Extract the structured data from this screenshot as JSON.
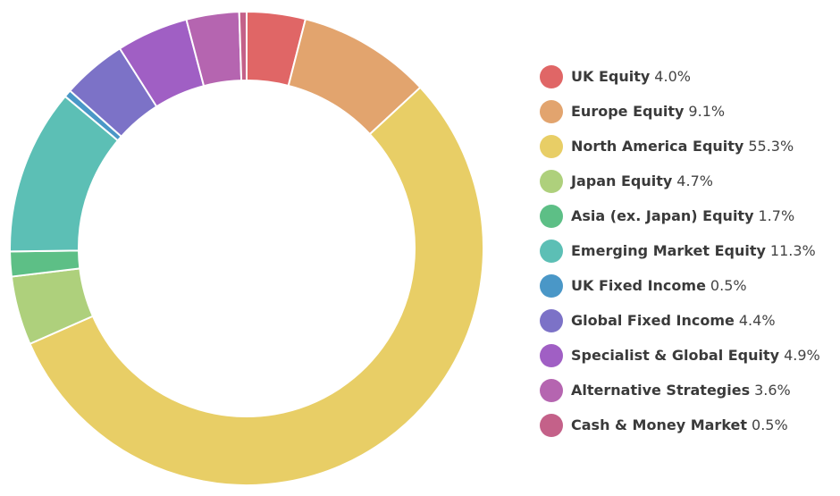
{
  "chart_data": {
    "type": "pie",
    "variant": "donut",
    "title": "",
    "legend_position": "right",
    "categories": [
      "UK Equity",
      "Europe Equity",
      "North America Equity",
      "Japan Equity",
      "Asia (ex. Japan) Equity",
      "Emerging Market Equity",
      "UK Fixed Income",
      "Global Fixed Income",
      "Specialist & Global Equity",
      "Alternative Strategies",
      "Cash & Money Market"
    ],
    "values": [
      4.0,
      9.1,
      55.3,
      4.7,
      1.7,
      11.3,
      0.5,
      4.4,
      4.9,
      3.6,
      0.5
    ],
    "value_labels": [
      "4.0%",
      "9.1%",
      "55.3%",
      "4.7%",
      "1.7%",
      "11.3%",
      "0.5%",
      "4.4%",
      "4.9%",
      "3.6%",
      "0.5%"
    ],
    "colors": [
      "#e06666",
      "#e2a46e",
      "#e8ce66",
      "#aed07c",
      "#5dbf86",
      "#5cbfb5",
      "#4a97c7",
      "#7c72c7",
      "#a05fc4",
      "#b565b0",
      "#c46189"
    ],
    "start_angle_deg": 0,
    "direction": "clockwise"
  }
}
